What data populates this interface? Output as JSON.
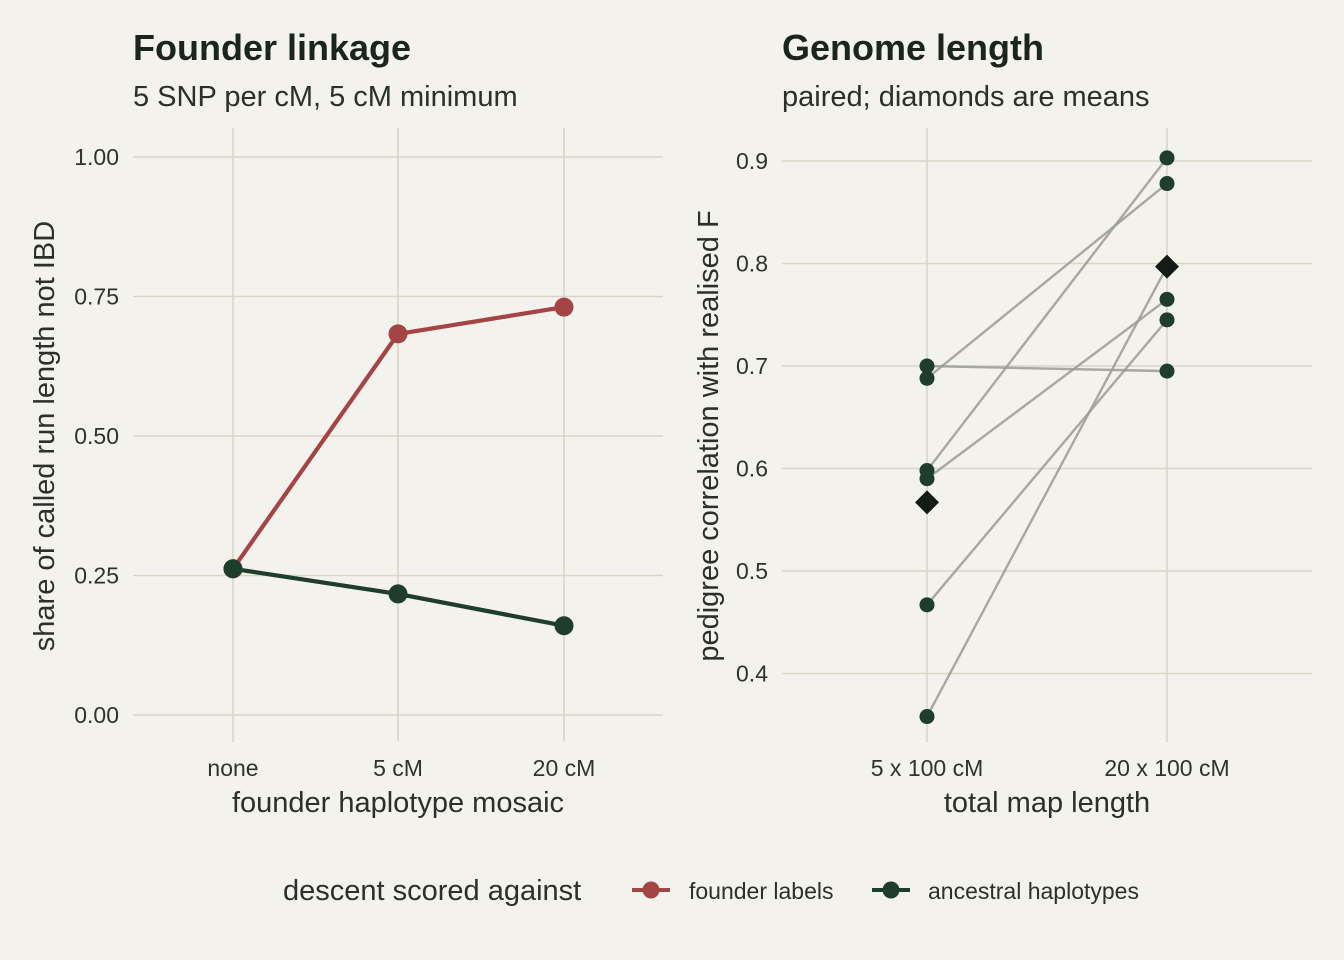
{
  "colors": {
    "background": "#f3f2ec",
    "grid": "#d6d7c8",
    "founder_labels": "#a54444",
    "ancestral_haplotypes": "#1f3d2b",
    "pair_line": "#9a9a96",
    "mean_marker": "#141a16"
  },
  "legend": {
    "title": "descent scored against",
    "entries": [
      "founder labels",
      "ancestral haplotypes"
    ],
    "placement": "bottom"
  },
  "chart_data": [
    {
      "type": "line",
      "title": "Founder linkage",
      "subtitle": "5 SNP per cM, 5 cM minimum",
      "xlabel": "founder haplotype mosaic",
      "ylabel": "share of called run length not IBD",
      "categories": [
        "none",
        "5 cM",
        "20 cM"
      ],
      "yticks": [
        "0.00",
        "0.25",
        "0.50",
        "0.75",
        "1.00"
      ],
      "ylim": [
        0,
        1.0
      ],
      "grid": true,
      "series": [
        {
          "name": "founder labels",
          "values": [
            0.262,
            0.683,
            0.731
          ]
        },
        {
          "name": "ancestral haplotypes",
          "values": [
            0.262,
            0.217,
            0.16
          ]
        }
      ]
    },
    {
      "type": "scatter",
      "title": "Genome length",
      "subtitle": "paired; diamonds are means",
      "xlabel": "total map length",
      "ylabel": "pedigree correlation with realised F",
      "categories": [
        "5 x 100 cM",
        "20 x 100 cM"
      ],
      "yticks": [
        "0.4",
        "0.5",
        "0.6",
        "0.7",
        "0.8",
        "0.9"
      ],
      "ylim": [
        0.35,
        0.91
      ],
      "grid": true,
      "pairs": [
        [
          0.7,
          0.695
        ],
        [
          0.688,
          0.878
        ],
        [
          0.598,
          0.903
        ],
        [
          0.59,
          0.765
        ],
        [
          0.467,
          0.745
        ],
        [
          0.358,
          0.797
        ]
      ],
      "means": [
        0.567,
        0.797
      ]
    }
  ]
}
